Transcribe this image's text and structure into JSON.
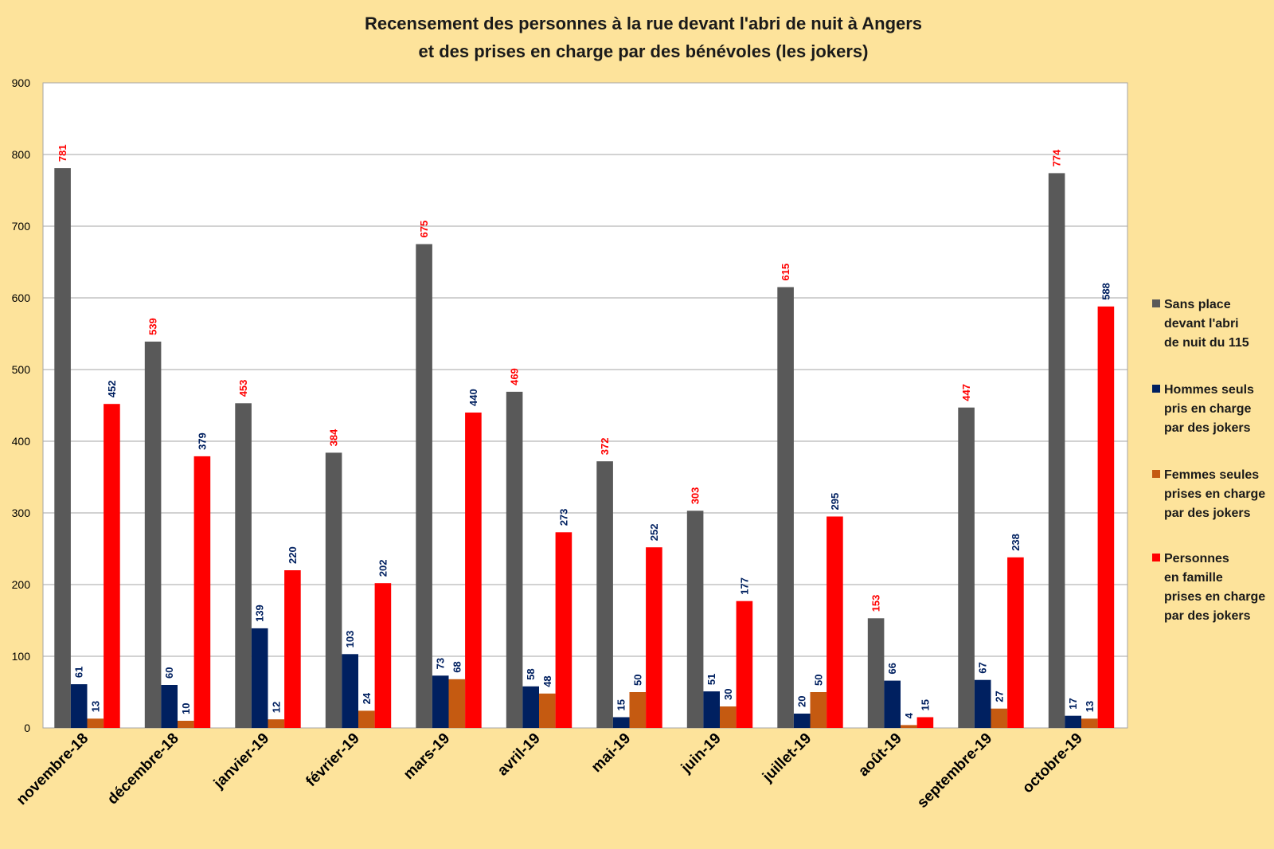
{
  "chart_data": {
    "type": "bar",
    "title": [
      "Recensement des personnes à la rue devant l'abri de nuit à Angers",
      "et des prises en charge par des bénévoles (les jokers)"
    ],
    "categories": [
      "novembre-18",
      "décembre-18",
      "janvier-19",
      "février-19",
      "mars-19",
      "avril-19",
      "mai-19",
      "juin-19",
      "juillet-19",
      "août-19",
      "septembre-19",
      "octobre-19"
    ],
    "series": [
      {
        "name": [
          "Sans place",
          "devant l'abri",
          "de nuit du 115"
        ],
        "color": "#595959",
        "label_color": "#ff0000",
        "values": [
          781,
          539,
          453,
          384,
          675,
          469,
          372,
          303,
          615,
          153,
          447,
          774
        ]
      },
      {
        "name": [
          "Hommes seuls",
          "pris en charge",
          "par des jokers"
        ],
        "color": "#002060",
        "label_color": "#002060",
        "values": [
          61,
          60,
          139,
          103,
          73,
          58,
          15,
          51,
          20,
          66,
          67,
          17
        ]
      },
      {
        "name": [
          "Femmes seules",
          "prises en charge",
          "par des jokers"
        ],
        "color": "#c55a11",
        "label_color": "#002060",
        "values": [
          13,
          10,
          12,
          24,
          68,
          48,
          50,
          30,
          50,
          4,
          27,
          13
        ]
      },
      {
        "name": [
          "Personnes",
          "en famille",
          "prises en charge",
          "par des jokers"
        ],
        "color": "#ff0000",
        "label_color": "#002060",
        "values": [
          452,
          379,
          220,
          202,
          440,
          273,
          252,
          177,
          295,
          15,
          238,
          588
        ]
      }
    ],
    "ylim": [
      0,
      900
    ],
    "yticks": [
      0,
      100,
      200,
      300,
      400,
      500,
      600,
      700,
      800,
      900
    ],
    "grid": true,
    "legend_position": "right",
    "plot_background": "#ffffff",
    "page_background": "#fde39b"
  }
}
